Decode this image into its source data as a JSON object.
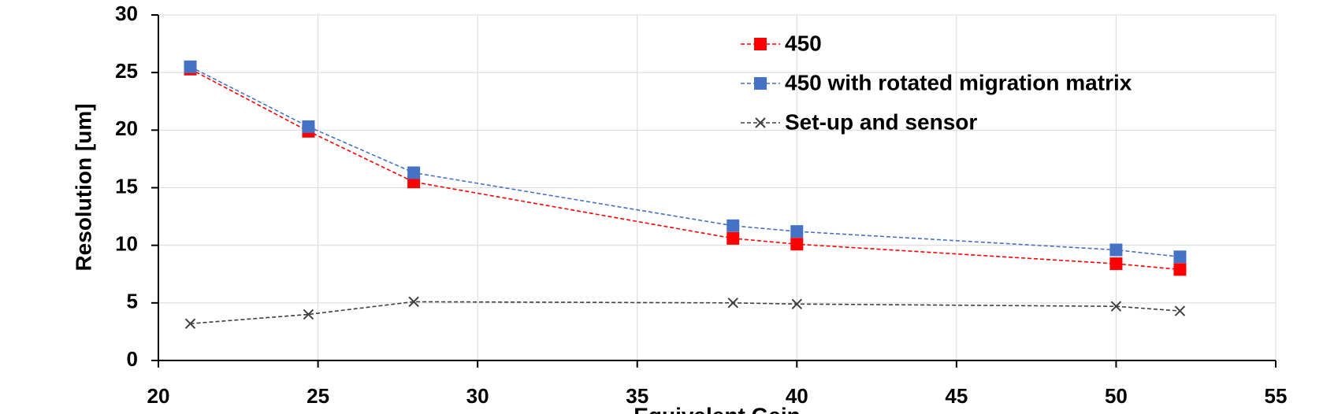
{
  "chart_data": {
    "type": "line",
    "x_label": "Equivalent Gain",
    "y_label": "Resolution [um]",
    "x": [
      21,
      24.7,
      28,
      38,
      40,
      50,
      52
    ],
    "series": [
      {
        "name": "450",
        "color": "#ff0000",
        "marker": "square",
        "values": [
          25.3,
          19.9,
          15.5,
          10.6,
          10.1,
          8.4,
          7.9
        ]
      },
      {
        "name": "450 with rotated  migration matrix",
        "color": "#4472c4",
        "marker": "square",
        "values": [
          25.5,
          20.3,
          16.3,
          11.7,
          11.2,
          9.6,
          9.0
        ]
      },
      {
        "name": "Set-up and sensor",
        "color": "#404040",
        "marker": "x",
        "values": [
          3.2,
          4.0,
          5.1,
          5.0,
          4.9,
          4.7,
          4.3
        ]
      }
    ],
    "xlim": [
      20,
      55
    ],
    "xticks": [
      20,
      25,
      30,
      35,
      40,
      45,
      50,
      55
    ],
    "ylim": [
      0,
      30
    ],
    "yticks": [
      0,
      5,
      10,
      15,
      20,
      25,
      30
    ],
    "grid": true,
    "legend": "top-right"
  }
}
